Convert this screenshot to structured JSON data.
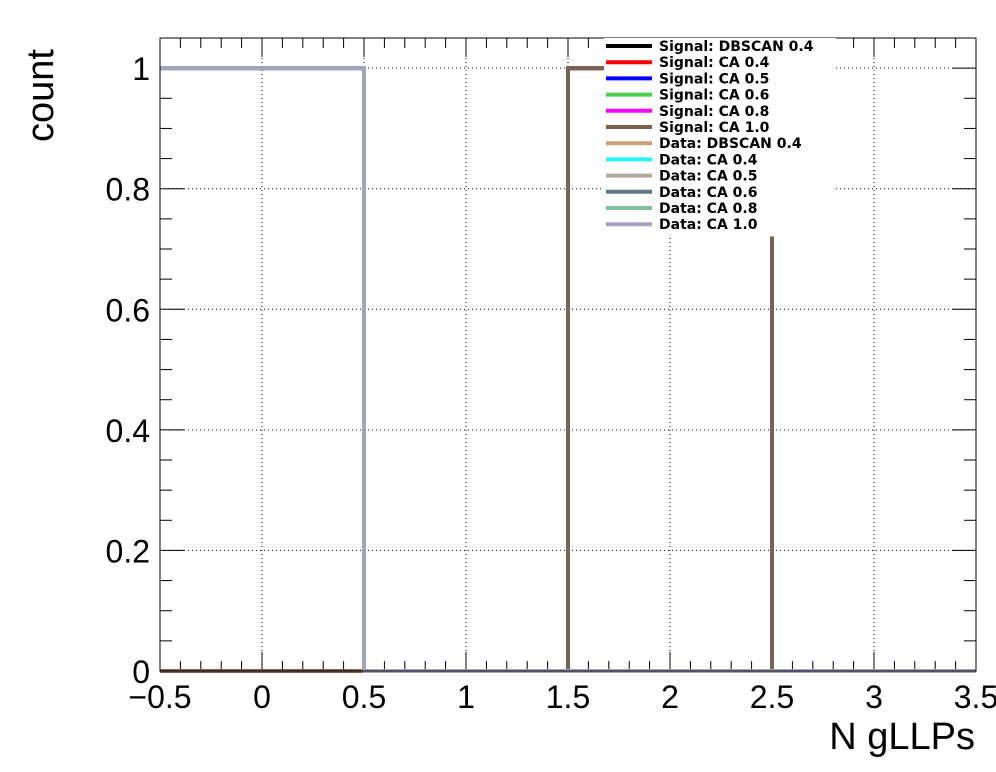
{
  "chart_data": {
    "type": "line",
    "xlabel": "N gLLPs",
    "ylabel": "count",
    "xlim": [
      -0.5,
      3.5
    ],
    "ylim": [
      0,
      1.05
    ],
    "grid": true,
    "legend_position": "top-right",
    "x_ticks": [
      {
        "value": -0.5,
        "label": "−0.5"
      },
      {
        "value": 0,
        "label": "0"
      },
      {
        "value": 0.5,
        "label": "0.5"
      },
      {
        "value": 1,
        "label": "1"
      },
      {
        "value": 1.5,
        "label": "1.5"
      },
      {
        "value": 2,
        "label": "2"
      },
      {
        "value": 2.5,
        "label": "2.5"
      },
      {
        "value": 3,
        "label": "3"
      },
      {
        "value": 3.5,
        "label": "3.5"
      }
    ],
    "y_ticks": [
      {
        "value": 0,
        "label": "0"
      },
      {
        "value": 0.2,
        "label": "0.2"
      },
      {
        "value": 0.4,
        "label": "0.4"
      },
      {
        "value": 0.6,
        "label": "0.6"
      },
      {
        "value": 0.8,
        "label": "0.8"
      },
      {
        "value": 1,
        "label": "1"
      }
    ],
    "bin_edges": [
      -0.5,
      0.5,
      1.5,
      2.5,
      3.5
    ],
    "series": [
      {
        "name": "Signal: DBSCAN 0.4",
        "color": "#000000",
        "values": [
          0,
          0,
          1,
          0
        ]
      },
      {
        "name": "Signal: CA 0.4",
        "color": "#ff0000",
        "values": [
          0,
          0,
          1,
          0
        ]
      },
      {
        "name": "Signal: CA 0.5",
        "color": "#0000ff",
        "values": [
          0,
          0,
          1,
          0
        ]
      },
      {
        "name": "Signal: CA 0.6",
        "color": "#4fcf4f",
        "values": [
          0,
          0,
          1,
          0
        ]
      },
      {
        "name": "Signal: CA 0.8",
        "color": "#ff00ff",
        "values": [
          0,
          0,
          1,
          0
        ]
      },
      {
        "name": "Signal: CA 1.0",
        "color": "#7a6351",
        "values": [
          0,
          0,
          1,
          0
        ]
      },
      {
        "name": "Data: DBSCAN 0.4",
        "color": "#c9a27c",
        "values": [
          1,
          0,
          0,
          0
        ]
      },
      {
        "name": "Data: CA 0.4",
        "color": "#22f5f5",
        "values": [
          1,
          0,
          0,
          0
        ]
      },
      {
        "name": "Data: CA 0.5",
        "color": "#b5a89c",
        "values": [
          1,
          0,
          0,
          0
        ]
      },
      {
        "name": "Data: CA 0.6",
        "color": "#5f7888",
        "values": [
          1,
          0,
          0,
          0
        ]
      },
      {
        "name": "Data: CA 0.8",
        "color": "#7fbfa0",
        "values": [
          1,
          0,
          0,
          0
        ]
      },
      {
        "name": "Data: CA 1.0",
        "color": "#a3a3bd",
        "values": [
          1,
          0,
          0,
          0
        ]
      }
    ]
  }
}
